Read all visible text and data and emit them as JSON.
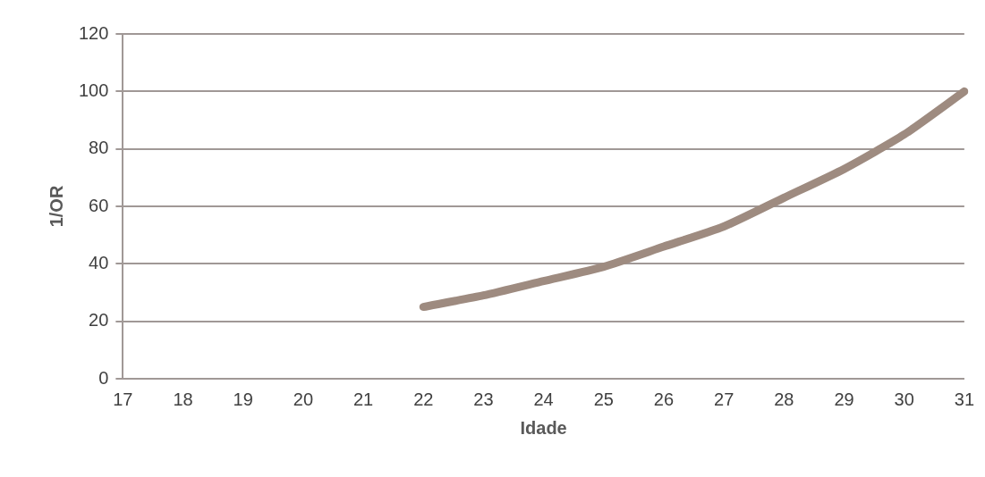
{
  "chart_data": {
    "type": "line",
    "xlabel": "Idade",
    "ylabel": "1/OR",
    "categories": [
      "17",
      "18",
      "19",
      "20",
      "21",
      "22",
      "23",
      "24",
      "25",
      "26",
      "27",
      "28",
      "29",
      "30",
      "31"
    ],
    "series": [
      {
        "color": "#9e8b80",
        "values": [
          null,
          null,
          null,
          null,
          null,
          25,
          29,
          34,
          39,
          46,
          53,
          63,
          73,
          85,
          100
        ]
      }
    ],
    "ylim": [
      0,
      120
    ],
    "yticks": [
      0,
      20,
      40,
      60,
      80,
      100,
      120
    ],
    "grid": "y",
    "legend": false,
    "marker": "none",
    "line_style": "solid"
  }
}
